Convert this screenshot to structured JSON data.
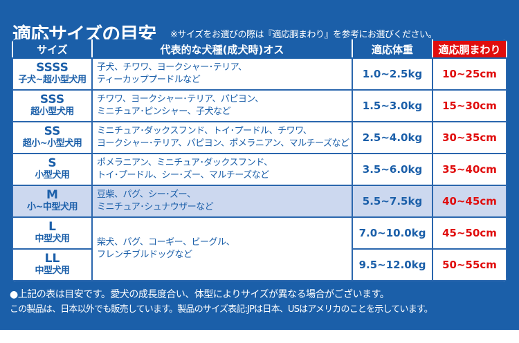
{
  "title": "適応サイズの目安",
  "subtitle": "※サイズをお選びの際は『適応胴まわり』を参考にお選びください。",
  "colors": {
    "background": "#1b5fa9",
    "accent": "#e00d0d",
    "highlight_row": "#ccd8ef"
  },
  "table": {
    "headers": {
      "size": "サイズ",
      "breeds": "代表的な犬種(成犬時)オス",
      "weight": "適応体重",
      "girth": "適応胴まわり"
    },
    "rows": [
      {
        "size": "SSSS",
        "label": "子犬~超小型犬用",
        "breeds": [
          "子犬、チワワ、ヨークシャー･テリア、",
          "ティーカッププードルなど"
        ],
        "weight": "1.0~2.5kg",
        "girth": "10~25cm"
      },
      {
        "size": "SSS",
        "label": "超小型犬用",
        "breeds": [
          "チワワ、ヨークシャー･テリア、パピヨン、",
          "ミニチュア･ピンシャー、子犬など"
        ],
        "weight": "1.5~3.0kg",
        "girth": "15~30cm"
      },
      {
        "size": "SS",
        "label": "超小~小型犬用",
        "breeds": [
          "ミニチュア･ダックスフンド、トイ･プードル、チワワ、",
          "ヨークシャー･テリア、パピヨン、ポメラニアン、マルチーズなど"
        ],
        "weight": "2.5~4.0kg",
        "girth": "30~35cm"
      },
      {
        "size": "S",
        "label": "小型犬用",
        "breeds": [
          "ポメラニアン、ミニチュア･ダックスフンド、",
          "トイ･プードル、シー･ズー、マルチーズなど"
        ],
        "weight": "3.5~6.0kg",
        "girth": "35~40cm"
      },
      {
        "size": "M",
        "label": "小~中型犬用",
        "breeds": [
          "豆柴、パグ、シー･ズー、",
          "ミニチュア･シュナウザーなど"
        ],
        "weight": "5.5~7.5kg",
        "girth": "40~45cm",
        "highlighted": true
      },
      {
        "size": "L",
        "label": "中型犬用",
        "breeds": [
          "柴犬、パグ、コーギー、ビーグル、",
          "フレンチブルドッグなど"
        ],
        "weight": "7.0~10.0kg",
        "girth": "45~50cm"
      },
      {
        "size": "LL",
        "label": "中型犬用",
        "weight": "9.5~12.0kg",
        "girth": "50~55cm"
      }
    ]
  },
  "notes": [
    "●上記の表は目安です。愛犬の成長度合い、体型によりサイズが異なる場合がございます。",
    "この製品は、日本以外でも販売しています。製品のサイズ表記:JPは日本、USはアメリカのことを示しています。"
  ]
}
